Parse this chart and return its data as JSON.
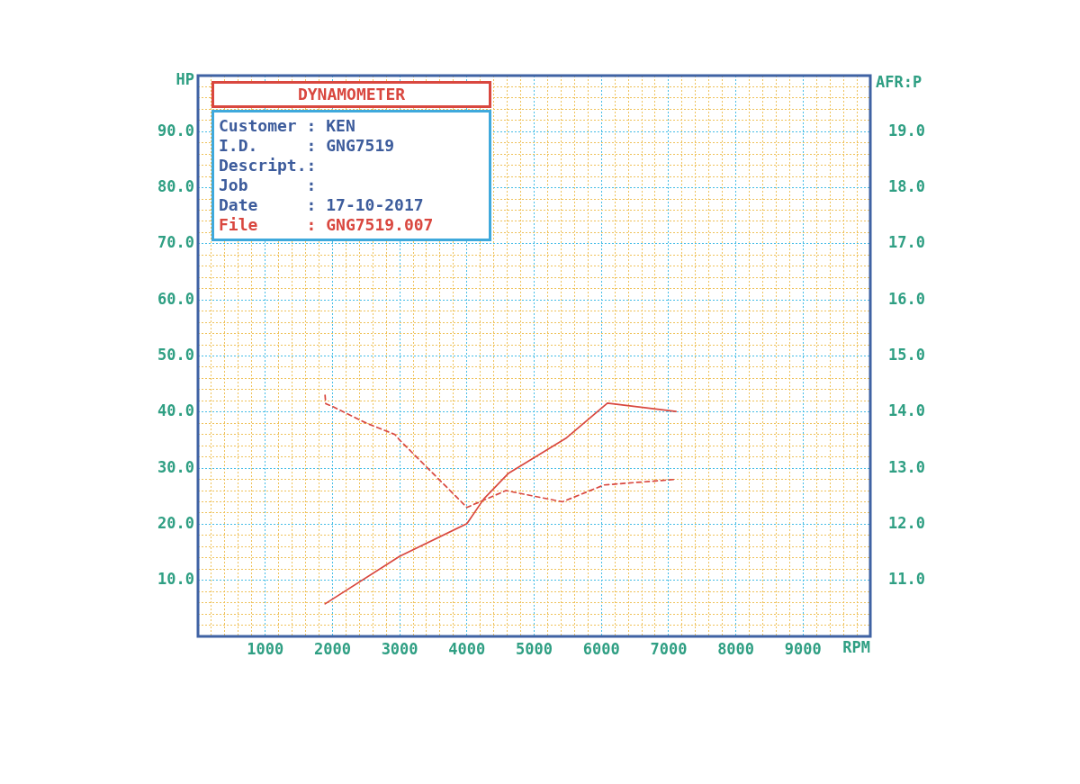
{
  "chart_data": {
    "type": "line",
    "title": "DYNAMOMETER",
    "xlabel": "RPM",
    "ylabel": "HP",
    "y2label": "AFR:P",
    "annotations": [
      "Customer : KEN",
      "I.D.     : GNG7519",
      "Descript.:",
      "Job      :",
      "Date     : 17-10-2017",
      "File     : GNG7519.007"
    ],
    "xlim": [
      0,
      10000
    ],
    "xticks": [
      {
        "value": 200,
        "label": null
      },
      {
        "value": 400,
        "label": null
      },
      {
        "value": 600,
        "label": null
      },
      {
        "value": 800,
        "label": null
      },
      1000,
      {
        "value": 1200,
        "label": null
      },
      {
        "value": 1400,
        "label": null
      },
      {
        "value": 1600,
        "label": null
      },
      {
        "value": 1800,
        "label": null
      },
      2000,
      {
        "value": 2200,
        "label": null
      },
      {
        "value": 2400,
        "label": null
      },
      {
        "value": 2600,
        "label": null
      },
      {
        "value": 2800,
        "label": null
      },
      3000,
      {
        "value": 3200,
        "label": null
      },
      {
        "value": 3400,
        "label": null
      },
      {
        "value": 3600,
        "label": null
      },
      {
        "value": 3800,
        "label": null
      },
      4000,
      {
        "value": 4200,
        "label": null
      },
      {
        "value": 4400,
        "label": null
      },
      {
        "value": 4600,
        "label": null
      },
      {
        "value": 4800,
        "label": null
      },
      5000,
      {
        "value": 5200,
        "label": null
      },
      {
        "value": 5400,
        "label": null
      },
      {
        "value": 5600,
        "label": null
      },
      {
        "value": 5800,
        "label": null
      },
      6000,
      {
        "value": 6200,
        "label": null
      },
      {
        "value": 6400,
        "label": null
      },
      {
        "value": 6600,
        "label": null
      },
      {
        "value": 6800,
        "label": null
      },
      7000,
      {
        "value": 7200,
        "label": null
      },
      {
        "value": 7400,
        "label": null
      },
      {
        "value": 7600,
        "label": null
      },
      {
        "value": 7800,
        "label": null
      },
      8000,
      {
        "value": 8200,
        "label": null
      },
      {
        "value": 8400,
        "label": null
      },
      {
        "value": 8600,
        "label": null
      },
      {
        "value": 8800,
        "label": null
      },
      9000,
      {
        "value": 9200,
        "label": null
      },
      {
        "value": 9400,
        "label": null
      },
      {
        "value": 9600,
        "label": null
      },
      {
        "value": 9800,
        "label": null
      }
    ],
    "ylim": [
      0,
      100
    ],
    "yticks": [
      {
        "value": 2,
        "label": null
      },
      {
        "value": 4,
        "label": null
      },
      {
        "value": 6,
        "label": null
      },
      {
        "value": 8,
        "label": null
      },
      {
        "value": 10,
        "label": "10.0"
      },
      {
        "value": 12,
        "label": null
      },
      {
        "value": 14,
        "label": null
      },
      {
        "value": 16,
        "label": null
      },
      {
        "value": 18,
        "label": null
      },
      {
        "value": 20,
        "label": "20.0"
      },
      {
        "value": 22,
        "label": null
      },
      {
        "value": 24,
        "label": null
      },
      {
        "value": 26,
        "label": null
      },
      {
        "value": 28,
        "label": null
      },
      {
        "value": 30,
        "label": "30.0"
      },
      {
        "value": 32,
        "label": null
      },
      {
        "value": 34,
        "label": null
      },
      {
        "value": 36,
        "label": null
      },
      {
        "value": 38,
        "label": null
      },
      {
        "value": 40,
        "label": "40.0"
      },
      {
        "value": 42,
        "label": null
      },
      {
        "value": 44,
        "label": null
      },
      {
        "value": 46,
        "label": null
      },
      {
        "value": 48,
        "label": null
      },
      {
        "value": 50,
        "label": "50.0"
      },
      {
        "value": 52,
        "label": null
      },
      {
        "value": 54,
        "label": null
      },
      {
        "value": 56,
        "label": null
      },
      {
        "value": 58,
        "label": null
      },
      {
        "value": 60,
        "label": "60.0"
      },
      {
        "value": 62,
        "label": null
      },
      {
        "value": 64,
        "label": null
      },
      {
        "value": 66,
        "label": null
      },
      {
        "value": 68,
        "label": null
      },
      {
        "value": 70,
        "label": "70.0"
      },
      {
        "value": 72,
        "label": null
      },
      {
        "value": 74,
        "label": null
      },
      {
        "value": 76,
        "label": null
      },
      {
        "value": 78,
        "label": null
      },
      {
        "value": 80,
        "label": "80.0"
      },
      {
        "value": 82,
        "label": null
      },
      {
        "value": 84,
        "label": null
      },
      {
        "value": 86,
        "label": null
      },
      {
        "value": 88,
        "label": null
      },
      {
        "value": 90,
        "label": "90.0"
      },
      {
        "value": 92,
        "label": null
      },
      {
        "value": 94,
        "label": null
      },
      {
        "value": 96,
        "label": null
      },
      {
        "value": 98,
        "label": null
      }
    ],
    "y2lim": [
      10,
      20
    ],
    "y2ticks": [
      {
        "value": 11,
        "label": "11.0"
      },
      {
        "value": 12,
        "label": "12.0"
      },
      {
        "value": 13,
        "label": "13.0"
      },
      {
        "value": 14,
        "label": "14.0"
      },
      {
        "value": 15,
        "label": "15.0"
      },
      {
        "value": 16,
        "label": "16.0"
      },
      {
        "value": 17,
        "label": "17.0"
      },
      {
        "value": 18,
        "label": "18.0"
      },
      {
        "value": 19,
        "label": "19.0"
      }
    ],
    "grid": true,
    "marker": "none",
    "series": [
      {
        "color": "#d9483f",
        "line_style": "solid",
        "x": [
          1890,
          3000,
          4000,
          4250,
          4620,
          5470,
          6090,
          7110
        ],
        "values": [
          5.8,
          14.3,
          20.1,
          24.5,
          29.1,
          35.3,
          41.6,
          40.1
        ]
      },
      {
        "color": "#d9483f",
        "line_style": "dashed",
        "axis": "y2",
        "x": [
          1890,
          1900,
          2000,
          2510,
          2930,
          3000,
          4000,
          4580,
          5420,
          6040,
          7110
        ],
        "values": [
          14.3,
          14.15,
          14.1,
          13.8,
          13.6,
          13.5,
          12.3,
          12.6,
          12.4,
          12.7,
          12.8
        ]
      }
    ]
  }
}
